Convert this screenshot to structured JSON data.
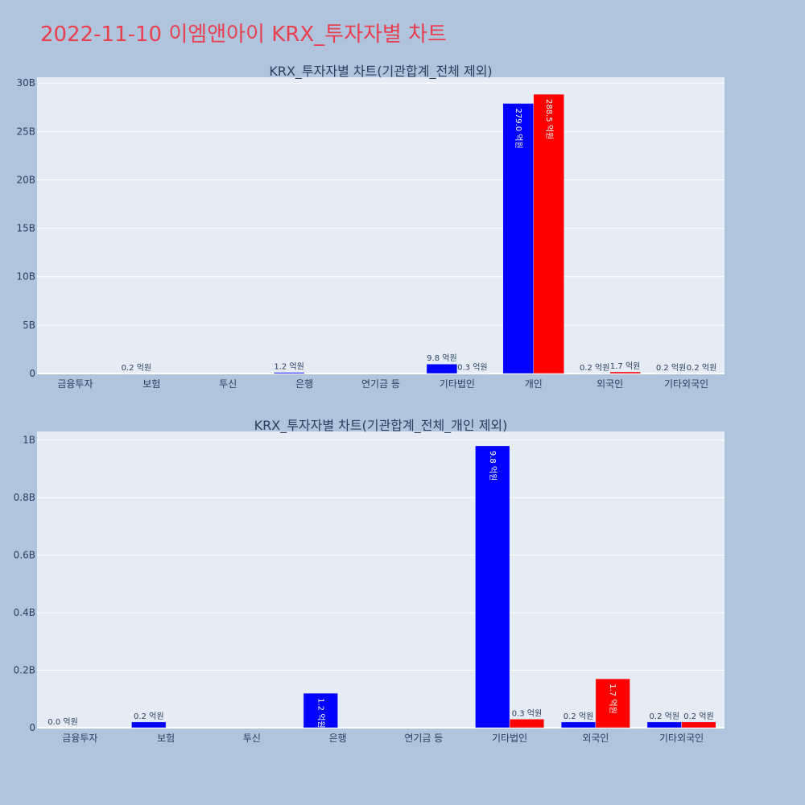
{
  "title": "2022-11-10 이엠앤아이 KRX_투자자별 차트",
  "colors": {
    "buy": "#0000ff",
    "sell": "#ff0000",
    "title": "#e8404f",
    "background": "#b0c4de",
    "plot_bg": "#e5ecf6"
  },
  "chart_data": [
    {
      "type": "bar",
      "title": "KRX_투자자별 차트(기관합계_전체 제외)",
      "categories": [
        "금융투자",
        "보험",
        "투신",
        "은행",
        "연기금 등",
        "기타법인",
        "개인",
        "외국인",
        "기타외국인"
      ],
      "yticks": [
        "0",
        "5B",
        "10B",
        "15B",
        "20B",
        "25B",
        "30B"
      ],
      "ylim": [
        0,
        30600000000
      ],
      "grid": true,
      "series": [
        {
          "color": "#0000ff",
          "values": [
            0,
            20000000,
            0,
            120000000,
            0,
            980000000,
            27900000000,
            20000000,
            20000000
          ],
          "labels": [
            "",
            "0.2 억원",
            "",
            "1.2 억원",
            "",
            "9.8 억원",
            "279.0 억원",
            "0.2 억원",
            "0.2 억원"
          ]
        },
        {
          "color": "#ff0000",
          "values": [
            0,
            0,
            0,
            0,
            0,
            30000000,
            28850000000,
            170000000,
            20000000
          ],
          "labels": [
            "",
            "",
            "",
            "",
            "",
            "0.3 억원",
            "288.5 억원",
            "1.7 억원",
            "0.2 억원"
          ]
        }
      ]
    },
    {
      "type": "bar",
      "title": "KRX_투자자별 차트(기관합계_전체_개인 제외)",
      "categories": [
        "금융투자",
        "보험",
        "투신",
        "은행",
        "연기금 등",
        "기타법인",
        "외국인",
        "기타외국인"
      ],
      "yticks": [
        "0",
        "0.2B",
        "0.4B",
        "0.6B",
        "0.8B",
        "1B"
      ],
      "ylim": [
        0,
        1030000000
      ],
      "grid": true,
      "series": [
        {
          "color": "#0000ff",
          "values": [
            0,
            20000000,
            0,
            120000000,
            0,
            980000000,
            20000000,
            20000000
          ],
          "labels": [
            "0.0 억원",
            "0.2 억원",
            "",
            "1.2 억원",
            "",
            "9.8 억원",
            "0.2 억원",
            "0.2 억원"
          ]
        },
        {
          "color": "#ff0000",
          "values": [
            0,
            0,
            0,
            0,
            0,
            30000000,
            170000000,
            20000000
          ],
          "labels": [
            "",
            "",
            "",
            "",
            "",
            "0.3 억원",
            "1.7 억원",
            "0.2 억원"
          ]
        }
      ]
    }
  ]
}
